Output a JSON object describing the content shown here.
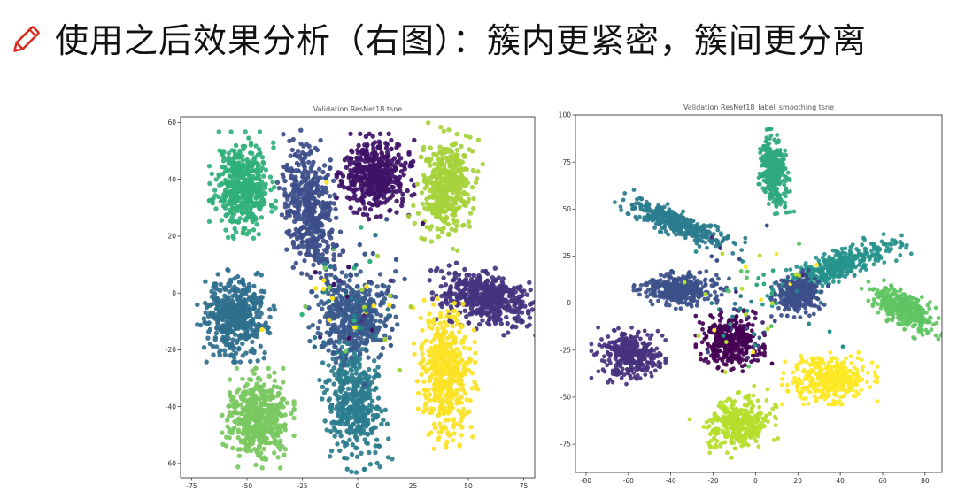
{
  "slide": {
    "title": "使用之后效果分析（右图）：簇内更紧密，簇间更分离",
    "icon": "pencil-icon"
  },
  "chart_data": [
    {
      "type": "scatter",
      "title": "Validation ResNet18 tsne",
      "xlabel": "",
      "ylabel": "",
      "xlim": [
        -80,
        80
      ],
      "ylim": [
        -65,
        62
      ],
      "xticks": [
        -75,
        -50,
        -25,
        0,
        25,
        50,
        75
      ],
      "yticks": [
        -60,
        -40,
        -20,
        0,
        20,
        40,
        60
      ],
      "grid": false,
      "clusters": [
        {
          "color": "#30b07a",
          "cx": -52,
          "cy": 38,
          "rx": 12,
          "ry": 15,
          "angle": 0,
          "n": 460
        },
        {
          "color": "#3d4e8a",
          "cx": -22,
          "cy": 30,
          "rx": 10,
          "ry": 22,
          "angle": 10,
          "n": 460
        },
        {
          "color": "#3f1268",
          "cx": 8,
          "cy": 41,
          "rx": 14,
          "ry": 12,
          "angle": 0,
          "n": 460
        },
        {
          "color": "#a6d13b",
          "cx": 40,
          "cy": 37,
          "rx": 11,
          "ry": 16,
          "angle": -15,
          "n": 420
        },
        {
          "color": "#44337f",
          "cx": 58,
          "cy": -2,
          "rx": 21,
          "ry": 9,
          "angle": -10,
          "n": 460
        },
        {
          "color": "#fbe225",
          "cx": 40,
          "cy": -28,
          "rx": 11,
          "ry": 21,
          "angle": 5,
          "n": 460
        },
        {
          "color": "#2b7d8e",
          "cx": -2,
          "cy": -38,
          "rx": 11,
          "ry": 20,
          "angle": 10,
          "n": 460
        },
        {
          "color": "#79c85f",
          "cx": -45,
          "cy": -44,
          "rx": 13,
          "ry": 14,
          "angle": 0,
          "n": 460
        },
        {
          "color": "#2f6f8e",
          "cx": -55,
          "cy": -8,
          "rx": 14,
          "ry": 13,
          "angle": 0,
          "n": 460
        },
        {
          "color": "#3a5a8c",
          "cx": -2,
          "cy": -8,
          "rx": 16,
          "ry": 14,
          "angle": 0,
          "n": 460
        }
      ]
    },
    {
      "type": "scatter",
      "title": "Validation ResNet18_label_smoothing tsne",
      "xlabel": "",
      "ylabel": "",
      "xlim": [
        -85,
        88
      ],
      "ylim": [
        -90,
        100
      ],
      "xticks": [
        -80,
        -60,
        -40,
        -20,
        0,
        20,
        40,
        60,
        80
      ],
      "yticks": [
        -75,
        -50,
        -25,
        0,
        25,
        50,
        75,
        100
      ],
      "grid": false,
      "clusters": [
        {
          "color": "#2fa87f",
          "cx": 8,
          "cy": 70,
          "rx": 6,
          "ry": 18,
          "angle": 8,
          "n": 320
        },
        {
          "color": "#2b7c8e",
          "cx": -36,
          "cy": 42,
          "rx": 26,
          "ry": 6,
          "angle": -25,
          "n": 380
        },
        {
          "color": "#26928c",
          "cx": 36,
          "cy": 18,
          "rx": 30,
          "ry": 7,
          "angle": 25,
          "n": 400
        },
        {
          "color": "#3b5089",
          "cx": -35,
          "cy": 7,
          "rx": 18,
          "ry": 8,
          "angle": 0,
          "n": 360
        },
        {
          "color": "#3d4f8a",
          "cx": 20,
          "cy": 5,
          "rx": 10,
          "ry": 10,
          "angle": 0,
          "n": 300
        },
        {
          "color": "#5fc462",
          "cx": 70,
          "cy": -3,
          "rx": 18,
          "ry": 8,
          "angle": -35,
          "n": 340
        },
        {
          "color": "#46327e",
          "cx": -60,
          "cy": -28,
          "rx": 14,
          "ry": 12,
          "angle": 0,
          "n": 360
        },
        {
          "color": "#440154",
          "cx": -12,
          "cy": -20,
          "rx": 13,
          "ry": 13,
          "angle": 0,
          "n": 380
        },
        {
          "color": "#fde725",
          "cx": 35,
          "cy": -40,
          "rx": 18,
          "ry": 11,
          "angle": 0,
          "n": 380
        },
        {
          "color": "#b5de2b",
          "cx": -8,
          "cy": -64,
          "rx": 16,
          "ry": 12,
          "angle": 25,
          "n": 360
        }
      ]
    }
  ]
}
